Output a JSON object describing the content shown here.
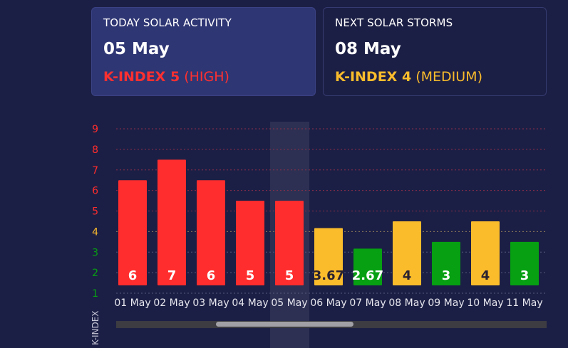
{
  "today": {
    "label": "TODAY SOLAR ACTIVITY",
    "date": "05 May",
    "kindex_label": "K-INDEX 5",
    "level": "(HIGH)"
  },
  "next": {
    "label": "NEXT SOLAR STORMS",
    "date": "08 May",
    "kindex_label": "K-INDEX 4",
    "level": "(MEDIUM)"
  },
  "colors": {
    "high": "#ff2d2d",
    "medium": "#fbbc2c",
    "low": "#06a012"
  },
  "chart_data": {
    "type": "bar",
    "ylabel": "K-INDEX",
    "ylim": [
      1,
      9
    ],
    "yticks": [
      1,
      2,
      3,
      4,
      5,
      6,
      7,
      8,
      9
    ],
    "categories": [
      "01 May",
      "02 May",
      "03 May",
      "04 May",
      "05 May",
      "06 May",
      "07 May",
      "08 May",
      "09 May",
      "10 May",
      "11 May"
    ],
    "values": [
      6,
      7,
      6,
      5,
      5,
      3.67,
      2.67,
      4,
      3,
      4,
      3
    ],
    "value_labels": [
      "6",
      "7",
      "6",
      "5",
      "5",
      "3.67",
      "2.67",
      "4",
      "3",
      "4",
      "3"
    ],
    "levels": [
      "high",
      "high",
      "high",
      "high",
      "high",
      "medium",
      "low",
      "medium",
      "low",
      "medium",
      "low"
    ],
    "highlighted_category": "05 May",
    "grid": true
  }
}
